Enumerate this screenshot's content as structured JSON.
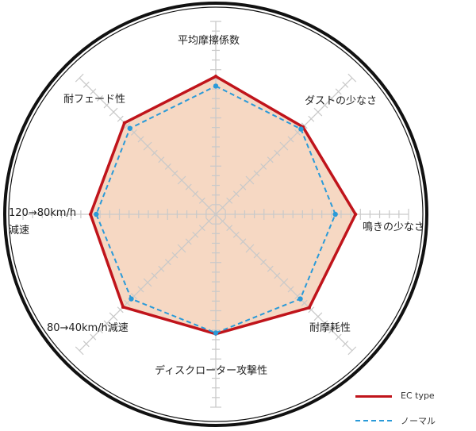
{
  "chart_data": {
    "type": "radar",
    "axes": [
      "平均摩擦係数",
      "ダストの少なさ",
      "鳴きの少なさ",
      "耐摩耗性",
      "ディスクローター攻撃性",
      "80→40km/h減速",
      "120→80km/h減速",
      "耐フェード性"
    ],
    "axis_label_lines": {
      "120→80km/h減速": [
        "120→80km/h",
        "減速"
      ]
    },
    "rlim": [
      0,
      20
    ],
    "grid": true,
    "legend_placement": "bottom-right",
    "series": [
      {
        "name": "EC type",
        "color": "#c0141b",
        "style": "solid",
        "values": [
          14.3,
          12.8,
          14.5,
          13.7,
          12.4,
          13.6,
          13.0,
          13.4
        ]
      },
      {
        "name": "ノーマル",
        "color": "#2a9ad8",
        "style": "dashed",
        "values": [
          13.3,
          12.5,
          12.4,
          12.4,
          12.3,
          12.4,
          12.4,
          12.6
        ]
      }
    ],
    "fill_color": "#f6d8c3"
  }
}
